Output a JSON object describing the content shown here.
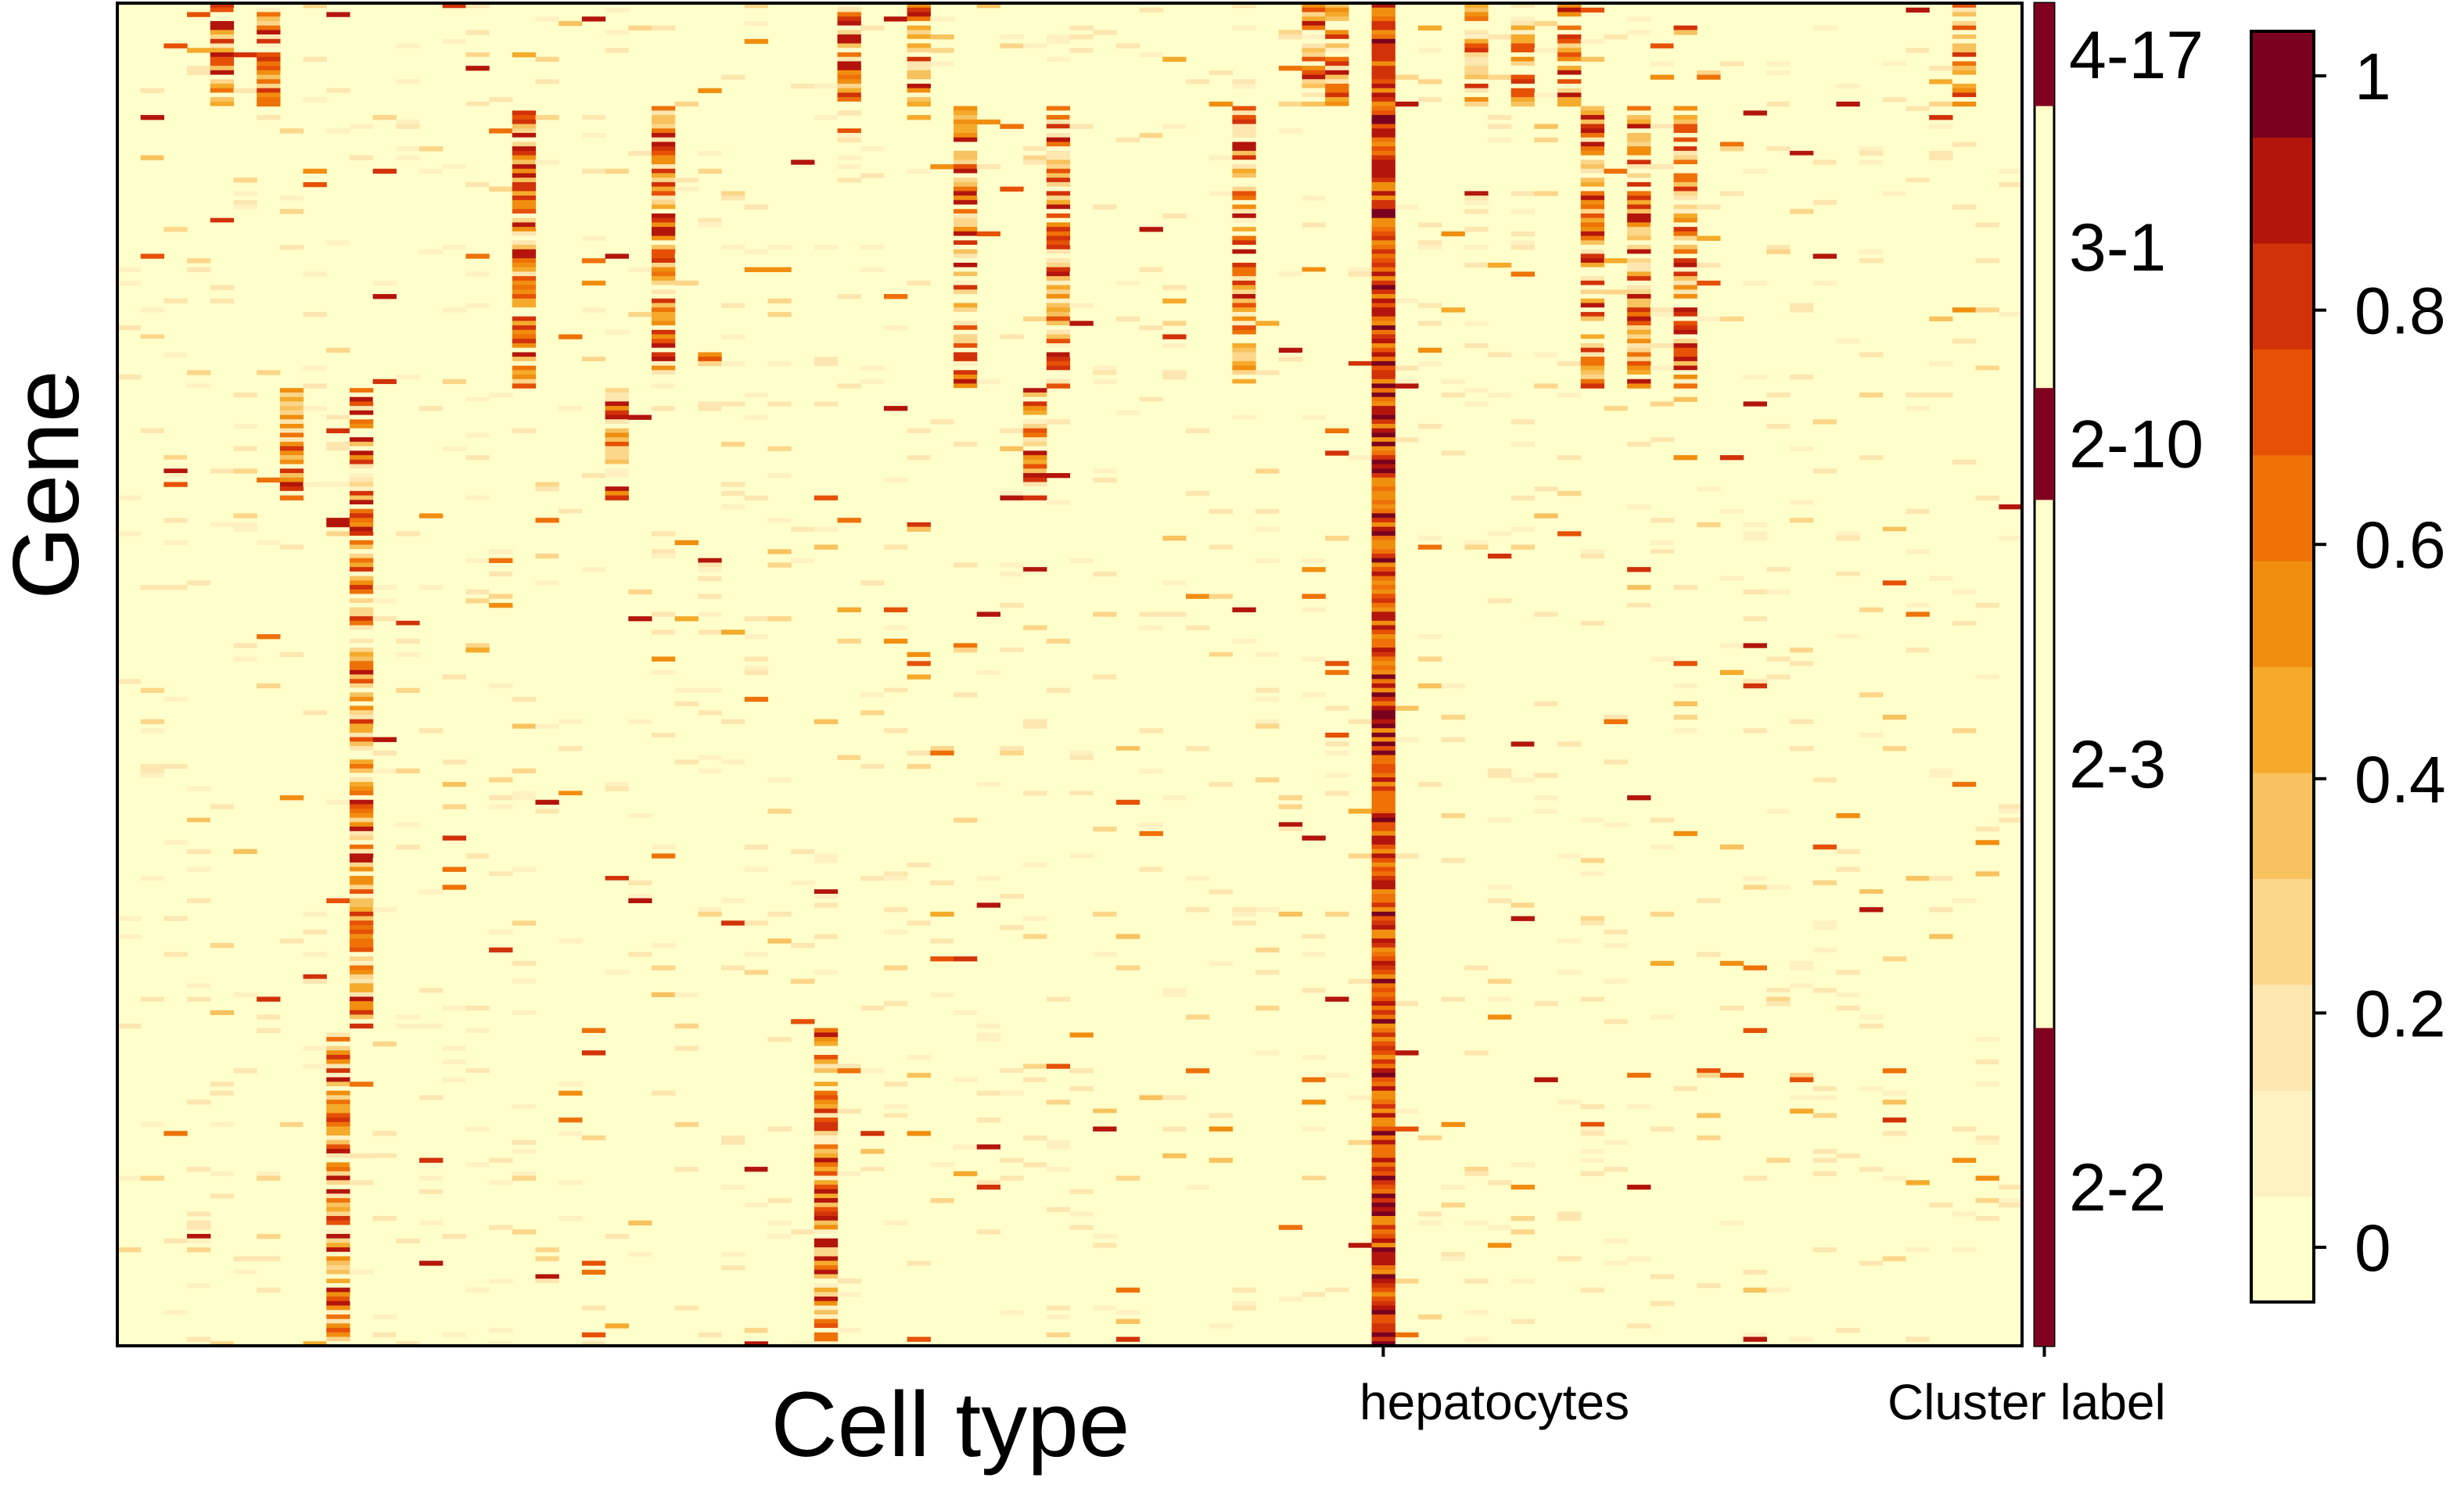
{
  "chart_data": {
    "type": "heatmap",
    "title": "",
    "xlabel": "Cell type",
    "ylabel": "Gene",
    "n_columns": 82,
    "n_rows": 300,
    "highlighted_column": {
      "index": 54,
      "label": "hepatocytes"
    },
    "cluster_label_column": {
      "label": "Cluster label"
    },
    "clusters": [
      {
        "label": "4-17",
        "row_start": 0,
        "row_end": 23,
        "marked": true,
        "columns": [
          4,
          6,
          31,
          34,
          51,
          52,
          58,
          60,
          62,
          79
        ]
      },
      {
        "label": "3-1",
        "row_start": 23,
        "row_end": 86,
        "marked": false,
        "columns": [
          17,
          23,
          36,
          40,
          48,
          63,
          65,
          67
        ]
      },
      {
        "label": "2-10",
        "row_start": 86,
        "row_end": 111,
        "marked": true,
        "columns": [
          7,
          10,
          21,
          39
        ]
      },
      {
        "label": "2-3",
        "row_start": 111,
        "row_end": 229,
        "marked": false,
        "columns": [
          10
        ]
      },
      {
        "label": "2-2",
        "row_start": 229,
        "row_end": 300,
        "marked": true,
        "columns": [
          9,
          30
        ]
      }
    ],
    "colorbar": {
      "min": 0,
      "max": 1.05,
      "ticks": [
        "0",
        "0.2",
        "0.4",
        "0.6",
        "0.8",
        "1"
      ],
      "tick_values": [
        0,
        0.2,
        0.4,
        0.6,
        0.8,
        1
      ],
      "levels": 12,
      "colors": [
        "#ffffcc",
        "#fff1c2",
        "#fde6b0",
        "#fcd68a",
        "#f8c25e",
        "#f5aa2b",
        "#f18e10",
        "#ee7208",
        "#e65106",
        "#d23209",
        "#b3150c",
        "#7a001f"
      ]
    },
    "marker_color": "#800020"
  }
}
